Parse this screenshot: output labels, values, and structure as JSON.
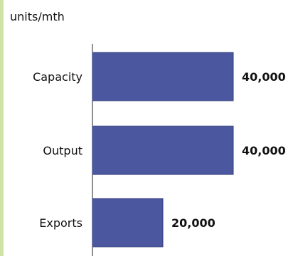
{
  "chart_data": {
    "type": "bar",
    "orientation": "horizontal",
    "unit_label": "units/mth",
    "categories": [
      "Capacity",
      "Output",
      "Exports"
    ],
    "values": [
      40000,
      40000,
      20000
    ],
    "value_labels": [
      "40,000",
      "40,000",
      "20,000"
    ],
    "xlim": [
      0,
      40000
    ],
    "grid": false,
    "bar_color": "#4b58a0",
    "accent_color": "#cfe3a6"
  }
}
